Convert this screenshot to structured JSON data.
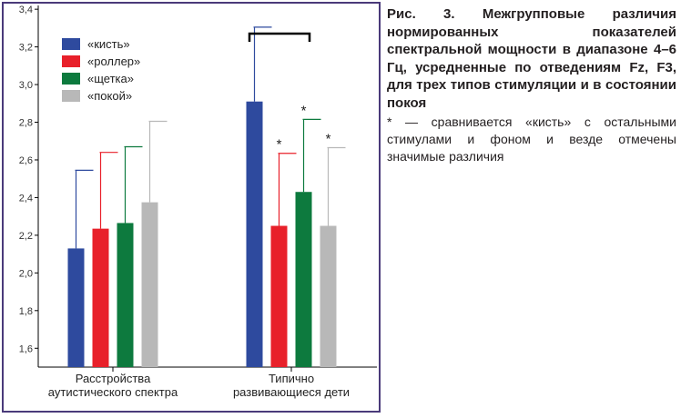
{
  "caption": {
    "title": "Рис. 3. Межгрупповые различия нормированных показателей спектральной мощности в диапазоне 4–6 Гц, усредненные по отведениям Fz, F3, для трех типов стимуляции и в состоянии покоя",
    "note": "* — сравнивается «кисть» с остальными стимулами и фоном и везде отмечены значимые различия"
  },
  "colors": {
    "frame": "#4a3a7a",
    "series": [
      "#2e4a9e",
      "#e8202a",
      "#0d7a3e",
      "#b8b8b8"
    ]
  },
  "chart_data": {
    "type": "bar",
    "title": "",
    "xlabel": "",
    "ylabel": "",
    "ylim": [
      1.5,
      3.42
    ],
    "yticks": [
      "1,6",
      "1,8",
      "2,0",
      "2,2",
      "2,4",
      "2,6",
      "2,8",
      "3,0",
      "3,2",
      "3,4"
    ],
    "ytick_values": [
      1.6,
      1.8,
      2.0,
      2.2,
      2.4,
      2.6,
      2.8,
      3.0,
      3.2,
      3.4
    ],
    "categories": [
      "Расстройства аутистического спектра",
      "Типично развивающиеся дети"
    ],
    "category_lines": [
      [
        "Расстройства",
        "аутистического спектра"
      ],
      [
        "Типично",
        "развивающиеся дети"
      ]
    ],
    "legend_position": "top-left",
    "series": [
      {
        "name": "«кисть»",
        "values": [
          2.13,
          2.91
        ],
        "errors": [
          2.545,
          3.305
        ],
        "stars": [
          false,
          false
        ]
      },
      {
        "name": "«роллер»",
        "values": [
          2.235,
          2.25
        ],
        "errors": [
          2.64,
          2.635
        ],
        "stars": [
          false,
          true
        ]
      },
      {
        "name": "«щетка»",
        "values": [
          2.265,
          2.43
        ],
        "errors": [
          2.67,
          2.815
        ],
        "stars": [
          false,
          true
        ]
      },
      {
        "name": "«покой»",
        "values": [
          2.375,
          2.25
        ],
        "errors": [
          2.805,
          2.665
        ],
        "stars": [
          false,
          true
        ]
      }
    ],
    "star_symbol": "*",
    "bracket": {
      "category": 1
    }
  }
}
